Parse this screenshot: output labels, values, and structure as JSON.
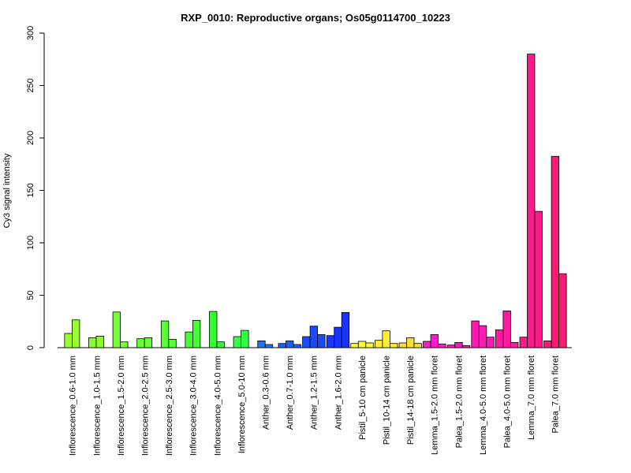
{
  "chart_data": {
    "type": "bar",
    "title": "RXP_0010: Reproductive organs; Os05g0114700_10223",
    "xlabel": "",
    "ylabel": "Cy3 signal intensity",
    "ylim": [
      0,
      300
    ],
    "yticks": [
      0,
      50,
      100,
      150,
      200,
      250,
      300
    ],
    "grid": false,
    "legend": "none",
    "groups": [
      {
        "label": "Inflorescence_0.6-1.0 mm",
        "color": "#99ff33",
        "values": [
          13.5,
          26.5
        ]
      },
      {
        "label": "Inflorescence_1.0-1.5 mm",
        "color": "#88ff33",
        "values": [
          9.5,
          11.0
        ]
      },
      {
        "label": "Inflorescence_1.5-2.0 mm",
        "color": "#77ff33",
        "values": [
          34.0,
          5.5
        ]
      },
      {
        "label": "Inflorescence_2.0-2.5 mm",
        "color": "#66ff33",
        "values": [
          8.5,
          9.5
        ]
      },
      {
        "label": "Inflorescence_2.5-3.0 mm",
        "color": "#55ff33",
        "values": [
          25.5,
          8.0
        ]
      },
      {
        "label": "Inflorescence_3.0-4.0 mm",
        "color": "#44ff33",
        "values": [
          15.0,
          26.0
        ]
      },
      {
        "label": "Inflorescence_4.0-5.0 mm",
        "color": "#33ff33",
        "values": [
          34.5,
          5.5
        ]
      },
      {
        "label": "Inflorescence_5.0-10 mm",
        "color": "#33ff44",
        "values": [
          10.5,
          16.5
        ]
      },
      {
        "label": "Anther_0.3-0.6 mm",
        "color": "#1a75ff",
        "values": [
          6.5,
          3.0
        ]
      },
      {
        "label": "Anther_0.7-1.0 mm",
        "color": "#1a5fff",
        "values": [
          4.0,
          6.5,
          3.0
        ]
      },
      {
        "label": "Anther_1.2-1.5 mm",
        "color": "#1a4aff",
        "values": [
          10.5,
          20.5,
          12.5
        ]
      },
      {
        "label": "Anther_1.6-2.0 mm",
        "color": "#1a33ff",
        "values": [
          11.5,
          19.5,
          33.5
        ]
      },
      {
        "label": "Pistil_5-10 cm panicle",
        "color": "#ffff33",
        "values": [
          4.0,
          6.0,
          4.5
        ]
      },
      {
        "label": "Pistil_10-14 cm panicle",
        "color": "#ffee33",
        "values": [
          7.0,
          16.0,
          4.0
        ]
      },
      {
        "label": "Pistil_14-18 cm panicle",
        "color": "#ffdd33",
        "values": [
          4.5,
          9.5,
          4.0
        ]
      },
      {
        "label": "Lemma_1.5-2.0 mm floret",
        "color": "#ff1acd",
        "values": [
          6.0,
          12.5,
          3.5
        ]
      },
      {
        "label": "Palea_1.5-2.0 mm floret",
        "color": "#ff1ac0",
        "values": [
          2.5,
          5.0,
          2.0
        ]
      },
      {
        "label": "Lemma_4.0-5.0 mm floret",
        "color": "#ff1ab3",
        "values": [
          25.5,
          21.0,
          10.0
        ]
      },
      {
        "label": "Palea_4.0-5.0 mm floret",
        "color": "#ff1aa0",
        "values": [
          17.0,
          35.0,
          5.0
        ]
      },
      {
        "label": "Lemma_7.0 mm floret",
        "color": "#ff1a8c",
        "values": [
          10.0,
          280.0,
          130.0
        ]
      },
      {
        "label": "Palea_7.0 mm floret",
        "color": "#ff1a75",
        "values": [
          6.5,
          182.5,
          70.5
        ]
      }
    ]
  }
}
